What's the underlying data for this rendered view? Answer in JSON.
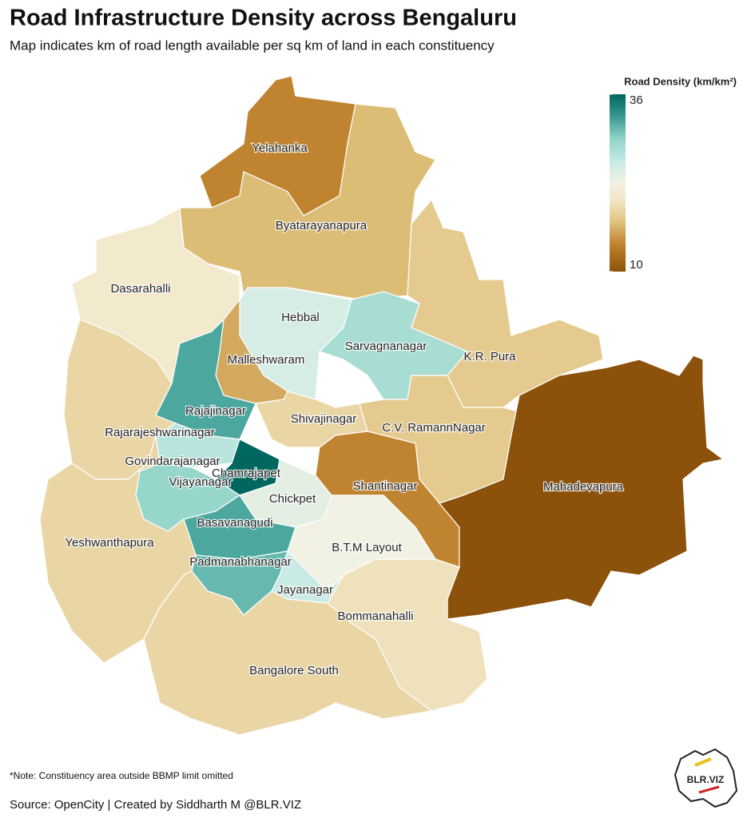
{
  "header": {
    "title": "Road Infrastructure Density across Bengaluru",
    "subtitle": "Map indicates  km of road length available per sq km of land in each constituency"
  },
  "legend": {
    "title": "Road Density (km/km²)",
    "lim": [
      10,
      36
    ],
    "ticks": [
      10,
      36
    ]
  },
  "regions": [
    {
      "name": "Yelahanka",
      "value": 14
    },
    {
      "name": "Byatarayanapura",
      "value": 17
    },
    {
      "name": "Dasarahalli",
      "value": 21
    },
    {
      "name": "Hebbal",
      "value": 25
    },
    {
      "name": "Sarvagnanagar",
      "value": 28
    },
    {
      "name": "K.R. Pura",
      "value": 18
    },
    {
      "name": "Malleshwaram",
      "value": 16
    },
    {
      "name": "Rajajinagar",
      "value": 32
    },
    {
      "name": "Rajarajeshwarinagar",
      "value": 19
    },
    {
      "name": "Shivajinagar",
      "value": 19
    },
    {
      "name": "C.V. RamannNagar",
      "value": 18
    },
    {
      "name": "Govindarajanagar",
      "value": 27
    },
    {
      "name": "Chamrajapet",
      "value": 36
    },
    {
      "name": "Vijayanagar",
      "value": 29
    },
    {
      "name": "Chickpet",
      "value": 24
    },
    {
      "name": "Shantinagar",
      "value": 14
    },
    {
      "name": "Mahadevapura",
      "value": 10
    },
    {
      "name": "Basavanagudi",
      "value": 32
    },
    {
      "name": "B.T.M Layout",
      "value": 23
    },
    {
      "name": "Yeshwanthapura",
      "value": 19
    },
    {
      "name": "Padmanabhanagar",
      "value": 31
    },
    {
      "name": "Jayanagar",
      "value": 26
    },
    {
      "name": "Bommanahalli",
      "value": 20
    },
    {
      "name": "Bangalore South",
      "value": 19
    }
  ],
  "footer": {
    "note": "*Note: Constituency area outside BBMP limit omitted",
    "source": "Source: OpenCity | Created by Siddharth M @BLR.VIZ",
    "logo": "BLR.VIZ"
  }
}
